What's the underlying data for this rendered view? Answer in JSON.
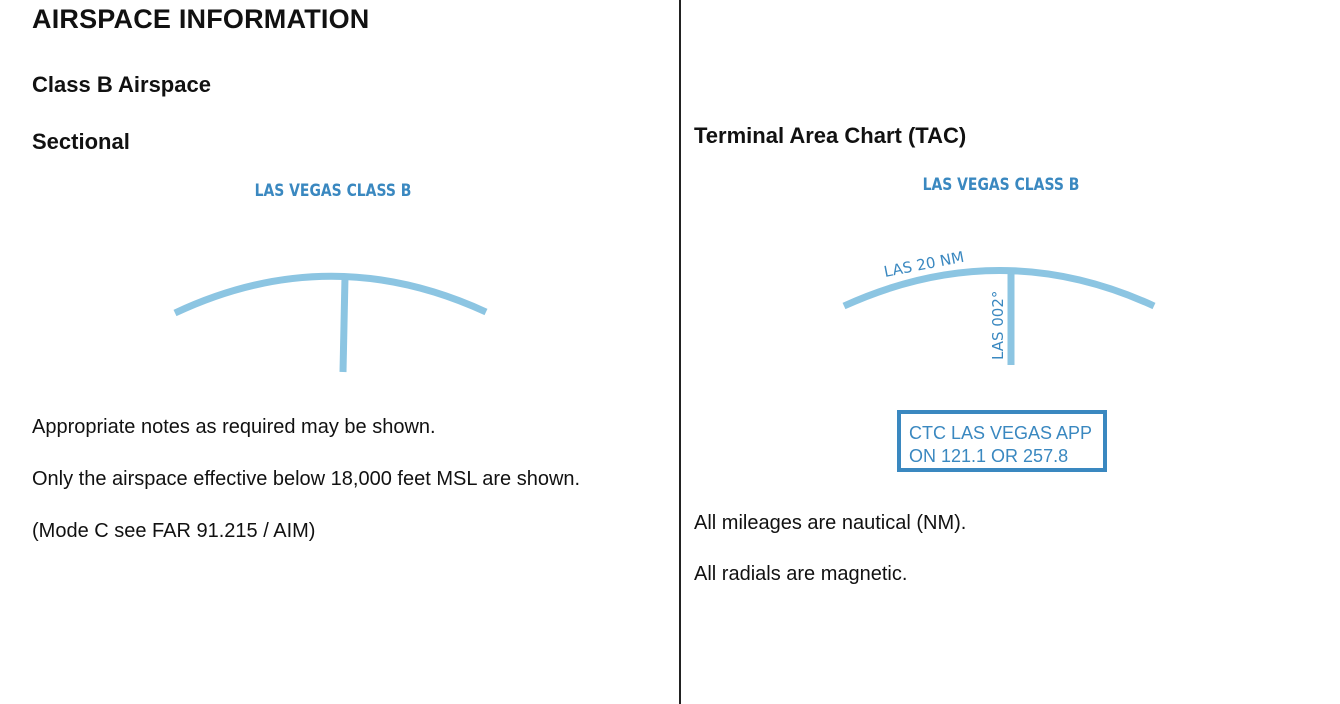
{
  "title": "AIRSPACE INFORMATION",
  "left": {
    "section_title": "Class B Airspace",
    "subtitle": "Sectional",
    "chart_label": "LAS VEGAS CLASS B",
    "notes": [
      "Appropriate notes as required may be shown.",
      "Only the airspace effective below 18,000 feet MSL are shown.",
      "(Mode C see FAR 91.215 / AIM)"
    ]
  },
  "right": {
    "subtitle": "Terminal Area Chart (TAC)",
    "chart_label": "LAS VEGAS CLASS B",
    "arc_label": "LAS 20 NM",
    "radial_label": "LAS 002°",
    "ctc_box": {
      "line1": "CTC LAS VEGAS APP",
      "line2": "ON 121.1 OR 257.8"
    },
    "notes": [
      "All mileages are nautical (NM).",
      "All radials are magnetic."
    ]
  },
  "colors": {
    "symbol_light_blue": "#8cc5e2",
    "label_blue": "#3a88c0",
    "divider": "#222222"
  }
}
